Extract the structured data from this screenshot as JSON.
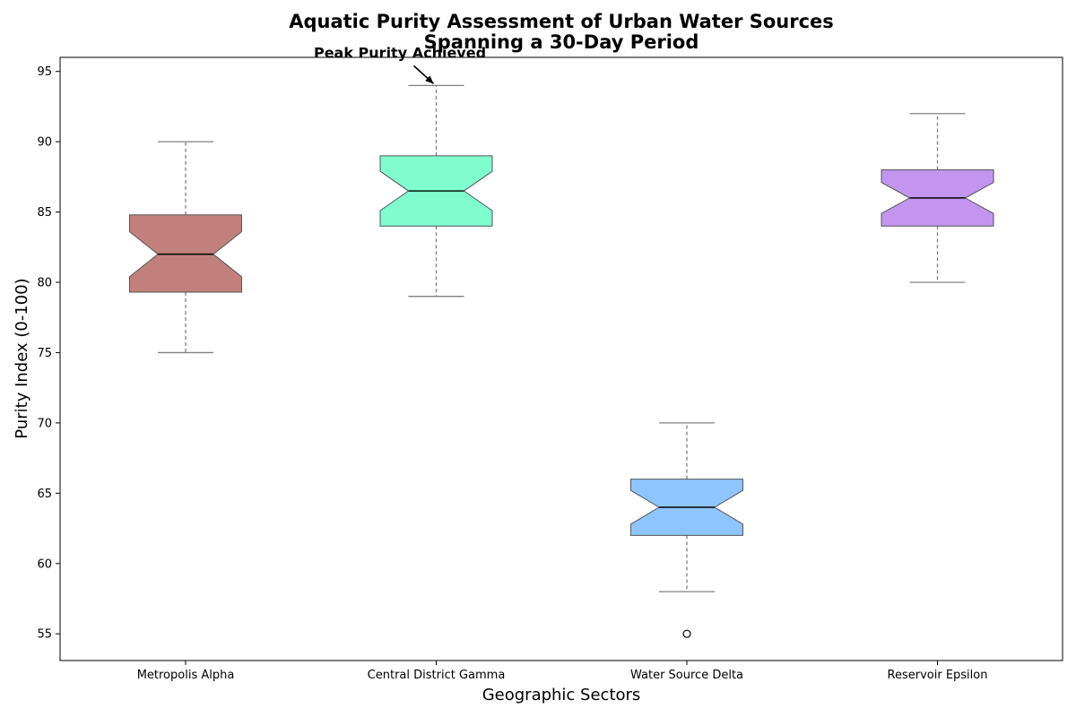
{
  "chart_data": {
    "type": "boxplot",
    "title_lines": [
      "Aquatic Purity Assessment of Urban Water Sources",
      "Spanning a 30-Day Period"
    ],
    "xlabel": "Geographic Sectors",
    "ylabel": "Purity Index (0-100)",
    "ylim": [
      53.1,
      96.0
    ],
    "yticks": [
      55,
      60,
      65,
      70,
      75,
      80,
      85,
      90,
      95
    ],
    "notched": true,
    "grid": false,
    "categories": [
      "Metropolis Alpha",
      "Central District Gamma",
      "Water Source Delta",
      "Reservoir Epsilon"
    ],
    "series": [
      {
        "category": "Metropolis Alpha",
        "whisker_low": 75,
        "q1": 79.3,
        "median": 82,
        "q3": 84.8,
        "whisker_high": 90,
        "notch_low": 80.4,
        "notch_high": 83.6,
        "outliers": [],
        "color": "#c1807b"
      },
      {
        "category": "Central District Gamma",
        "whisker_low": 79,
        "q1": 84,
        "median": 86.5,
        "q3": 89,
        "whisker_high": 94,
        "notch_low": 85.1,
        "notch_high": 87.9,
        "outliers": [],
        "color": "#7ffdcf"
      },
      {
        "category": "Water Source Delta",
        "whisker_low": 58,
        "q1": 62,
        "median": 64,
        "q3": 66,
        "whisker_high": 70,
        "notch_low": 62.8,
        "notch_high": 65.2,
        "outliers": [
          55
        ],
        "color": "#8ec5fd"
      },
      {
        "category": "Reservoir Epsilon",
        "whisker_low": 80,
        "q1": 84,
        "median": 86,
        "q3": 88,
        "whisker_high": 92,
        "notch_low": 84.9,
        "notch_high": 87.1,
        "outliers": [],
        "color": "#c395ef"
      }
    ],
    "annotations": [
      {
        "text": "Peak Purity Achieved",
        "category": "Central District Gamma",
        "value": 94
      }
    ]
  }
}
